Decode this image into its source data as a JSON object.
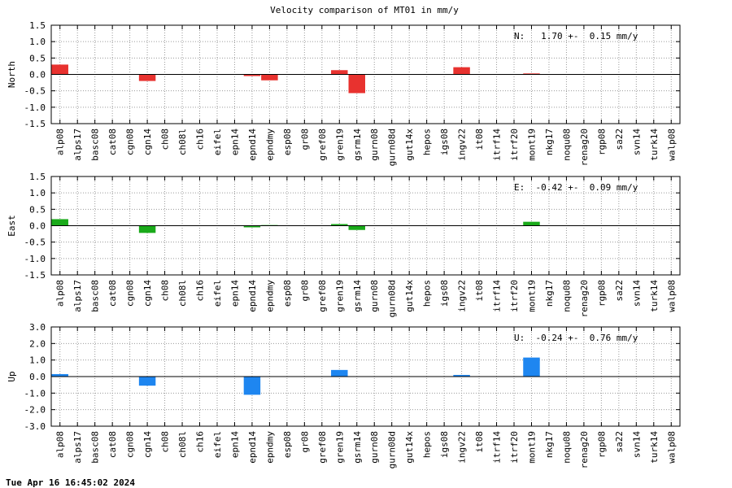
{
  "title": "Velocity comparison of MT01 in mm/y",
  "footer": "Tue Apr 16 16:45:02 2024",
  "chart_data": [
    {
      "type": "bar",
      "ylabel": "North",
      "ylim": [
        -1.5,
        1.5
      ],
      "yticks": [
        "1.5",
        "1.0",
        "0.5",
        "0.0",
        "-0.5",
        "-1.0",
        "-1.5"
      ],
      "ytick_values": [
        1.5,
        1.0,
        0.5,
        0.0,
        -0.5,
        -1.0,
        -1.5
      ],
      "color": "#e8322f",
      "annotation": "N:   1.70 +-  0.15 mm/y",
      "grid": true,
      "categories": [
        "alp08",
        "alps17",
        "basc08",
        "cat08",
        "cgn08",
        "cgn14",
        "ch08",
        "ch08l",
        "ch16",
        "eifel",
        "epn14",
        "epnd14",
        "epndmy",
        "esp08",
        "gr08",
        "gref08",
        "gren19",
        "gsrm14",
        "gurn08",
        "gurn08d",
        "gut14x",
        "hepos",
        "igs08",
        "ingv22",
        "it08",
        "itrf14",
        "itrf20",
        "mont19",
        "nkg17",
        "noqu08",
        "renag20",
        "rgp08",
        "sa22",
        "svn14",
        "turk14",
        "walp08"
      ],
      "values": [
        0.3,
        0,
        0,
        0,
        0,
        -0.2,
        0,
        0,
        0,
        0,
        0,
        -0.05,
        -0.18,
        0,
        0,
        0,
        0.13,
        -0.57,
        0,
        0,
        0,
        0,
        0,
        0.22,
        0,
        0,
        0,
        0.03,
        0,
        0,
        0,
        0,
        0,
        0,
        0,
        0
      ]
    },
    {
      "type": "bar",
      "ylabel": "East",
      "ylim": [
        -1.5,
        1.5
      ],
      "yticks": [
        "1.5",
        "1.0",
        "0.5",
        "0.0",
        "-0.5",
        "-1.0",
        "-1.5"
      ],
      "ytick_values": [
        1.5,
        1.0,
        0.5,
        0.0,
        -0.5,
        -1.0,
        -1.5
      ],
      "color": "#1aaa1a",
      "annotation": "E:  -0.42 +-  0.09 mm/y",
      "grid": true,
      "categories": [
        "alp08",
        "alps17",
        "basc08",
        "cat08",
        "cgn08",
        "cgn14",
        "ch08",
        "ch08l",
        "ch16",
        "eifel",
        "epn14",
        "epnd14",
        "epndmy",
        "esp08",
        "gr08",
        "gref08",
        "gren19",
        "gsrm14",
        "gurn08",
        "gurn08d",
        "gut14x",
        "hepos",
        "igs08",
        "ingv22",
        "it08",
        "itrf14",
        "itrf20",
        "mont19",
        "nkg17",
        "noqu08",
        "renag20",
        "rgp08",
        "sa22",
        "svn14",
        "turk14",
        "walp08"
      ],
      "values": [
        0.2,
        0,
        0,
        0,
        0,
        -0.22,
        0,
        0,
        0,
        0,
        0,
        -0.05,
        0.02,
        0,
        0,
        0,
        0.05,
        -0.13,
        0,
        0,
        0,
        0,
        0,
        0,
        0,
        0,
        0,
        0.12,
        0,
        0,
        0,
        0,
        0,
        0,
        0,
        0
      ]
    },
    {
      "type": "bar",
      "ylabel": "Up",
      "ylim": [
        -3.0,
        3.0
      ],
      "yticks": [
        "3.0",
        "2.0",
        "1.0",
        "0.0",
        "-1.0",
        "-2.0",
        "-3.0"
      ],
      "ytick_values": [
        3.0,
        2.0,
        1.0,
        0.0,
        -1.0,
        -2.0,
        -3.0
      ],
      "color": "#1e86f0",
      "annotation": "U:  -0.24 +-  0.76 mm/y",
      "grid": true,
      "categories": [
        "alp08",
        "alps17",
        "basc08",
        "cat08",
        "cgn08",
        "cgn14",
        "ch08",
        "ch08l",
        "ch16",
        "eifel",
        "epn14",
        "epnd14",
        "epndmy",
        "esp08",
        "gr08",
        "gref08",
        "gren19",
        "gsrm14",
        "gurn08",
        "gurn08d",
        "gut14x",
        "hepos",
        "igs08",
        "ingv22",
        "it08",
        "itrf14",
        "itrf20",
        "mont19",
        "nkg17",
        "noqu08",
        "renag20",
        "rgp08",
        "sa22",
        "svn14",
        "turk14",
        "walp08"
      ],
      "values": [
        0.15,
        0,
        0,
        0,
        0,
        -0.55,
        0,
        0,
        0,
        0,
        0,
        -1.1,
        0,
        0,
        0,
        0,
        0.4,
        0,
        0,
        0,
        0,
        0,
        0,
        0.1,
        0,
        0,
        0,
        1.15,
        0,
        0,
        0,
        0,
        0,
        0,
        0,
        0
      ]
    }
  ]
}
